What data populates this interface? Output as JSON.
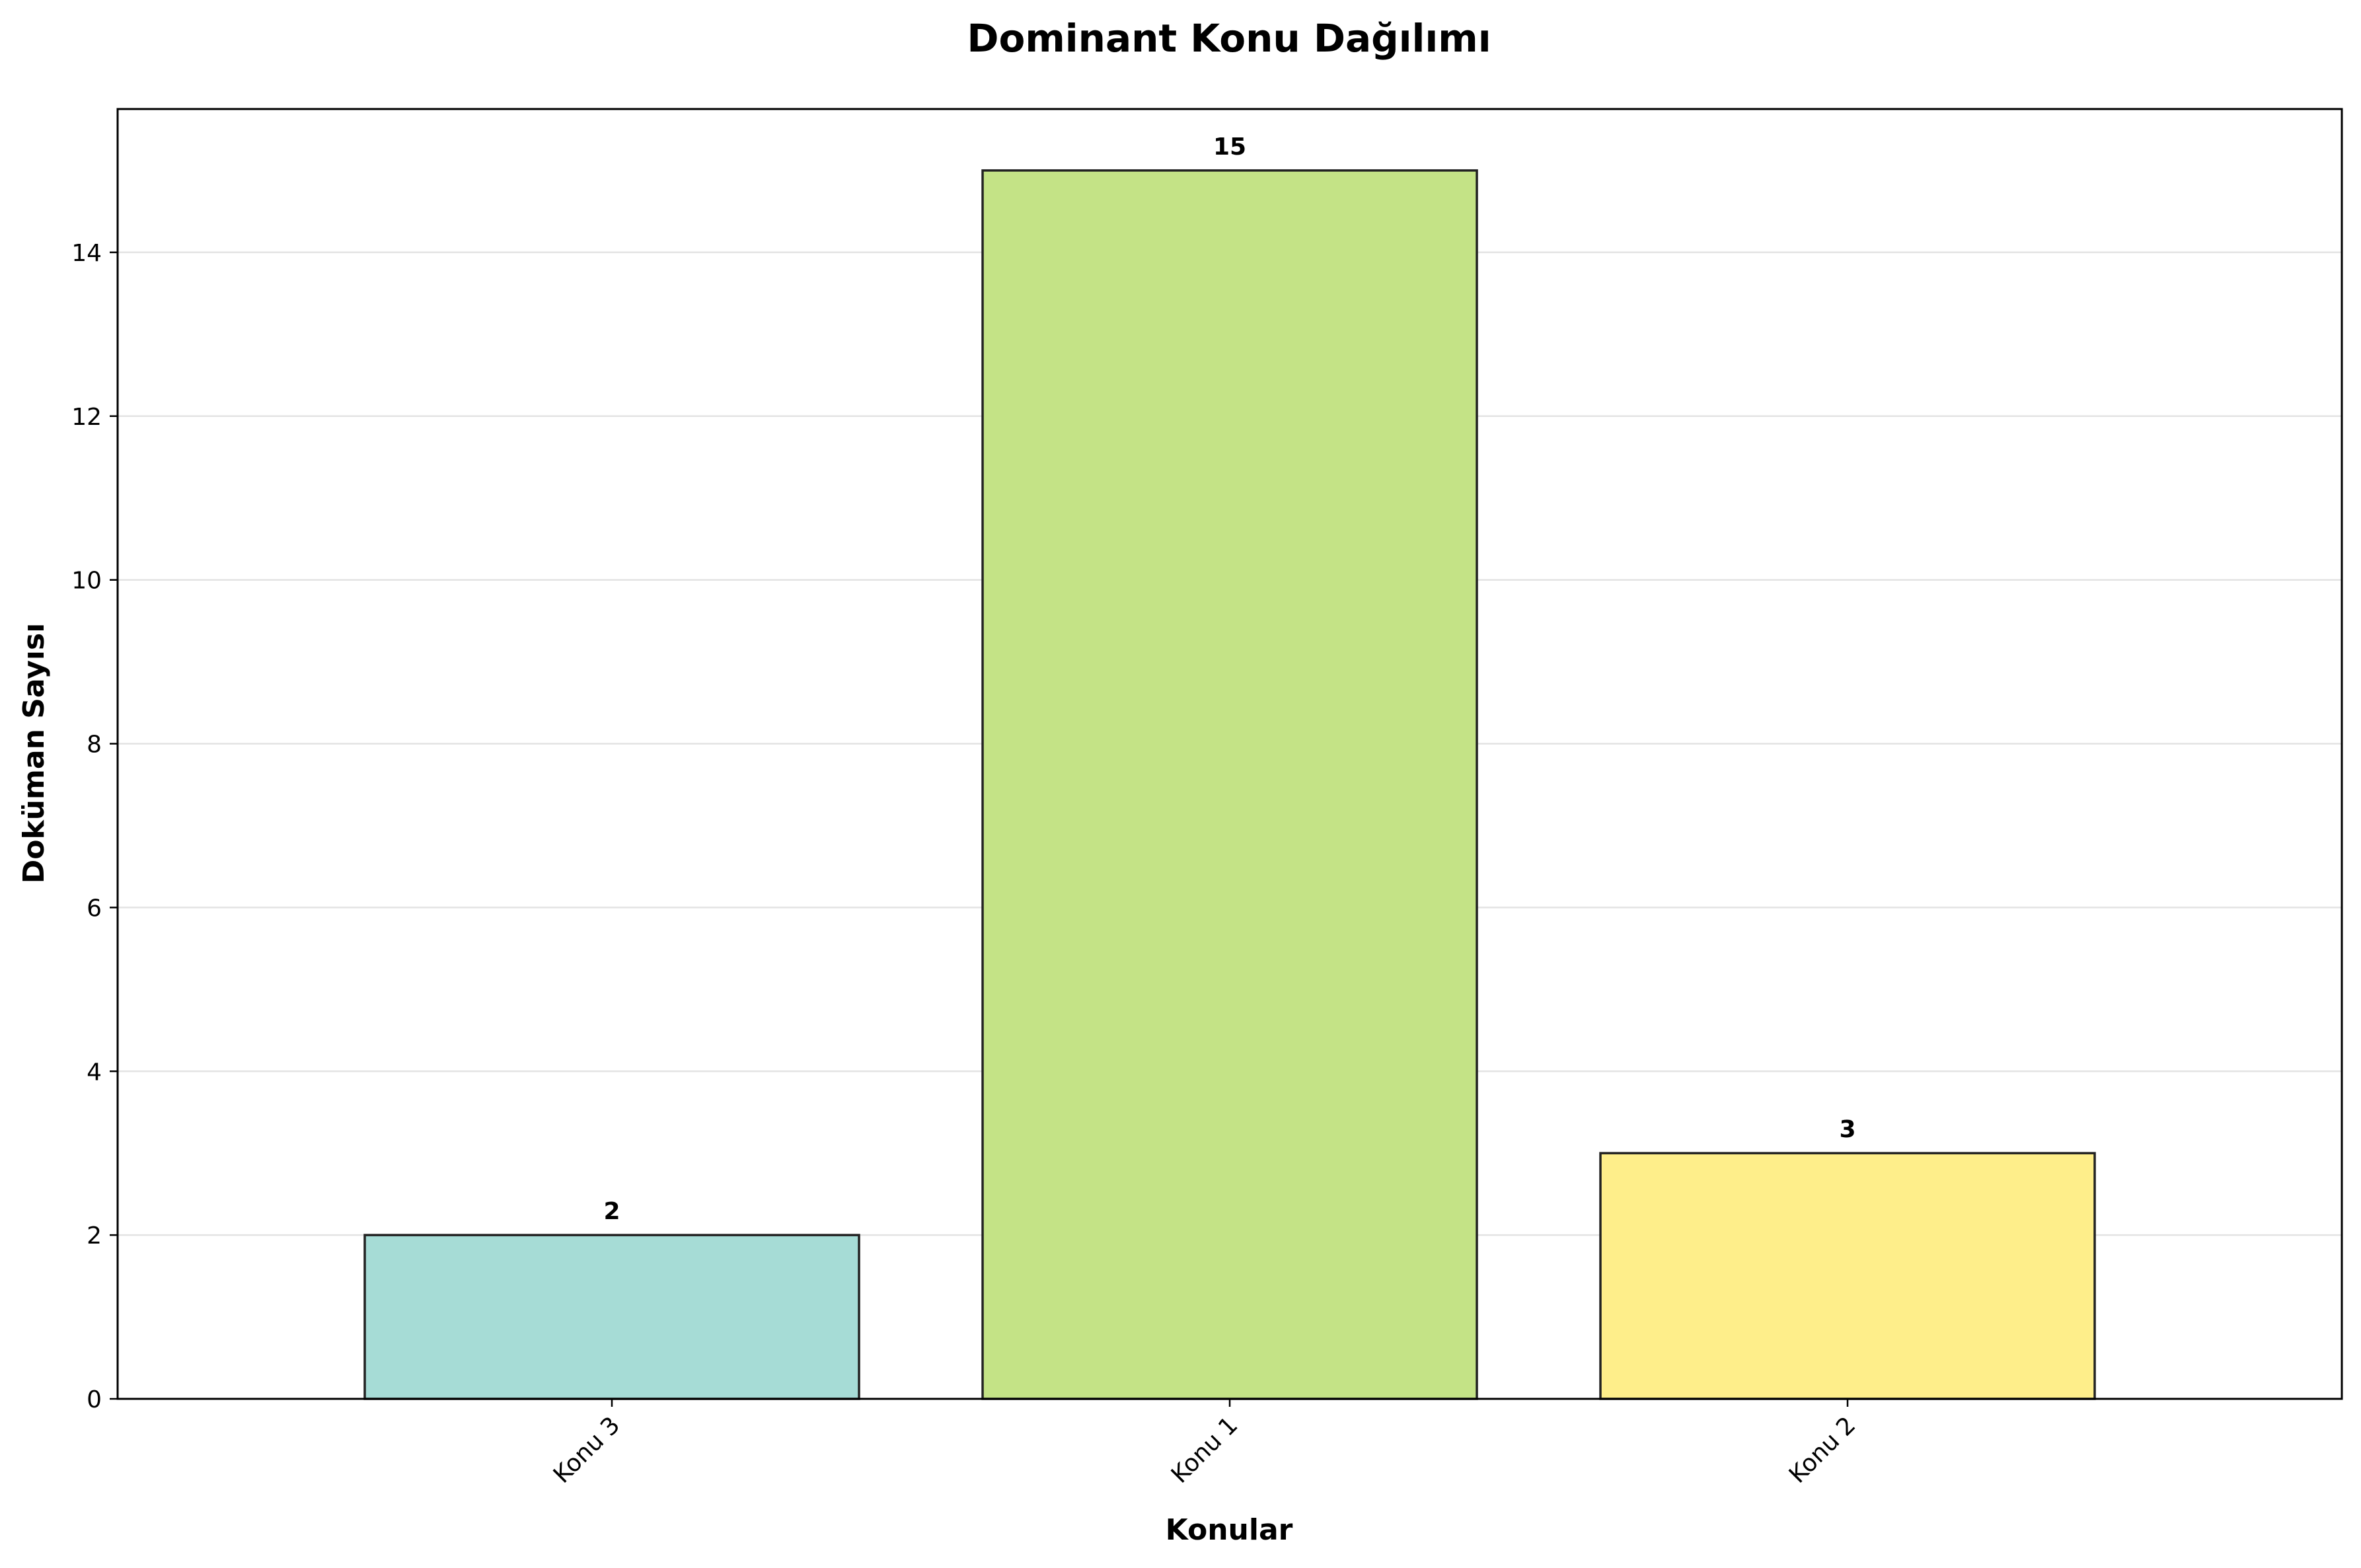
{
  "chart_data": {
    "type": "bar",
    "title": "Dominant Konu Dağılımı",
    "xlabel": "Konular",
    "ylabel": "Doküman Sayısı",
    "categories": [
      "Konu 3",
      "Konu 1",
      "Konu 2"
    ],
    "values": [
      2,
      15,
      3
    ],
    "bar_colors": [
      "#a6dcd6",
      "#c4e386",
      "#feee8a"
    ],
    "bar_edge_color": "#222222",
    "y_ticks": [
      0,
      2,
      4,
      6,
      8,
      10,
      12,
      14
    ],
    "ylim": [
      0,
      15.75
    ],
    "grid": "horizontal",
    "x_tick_rotation": "45 degrees",
    "show_value_labels": true
  }
}
